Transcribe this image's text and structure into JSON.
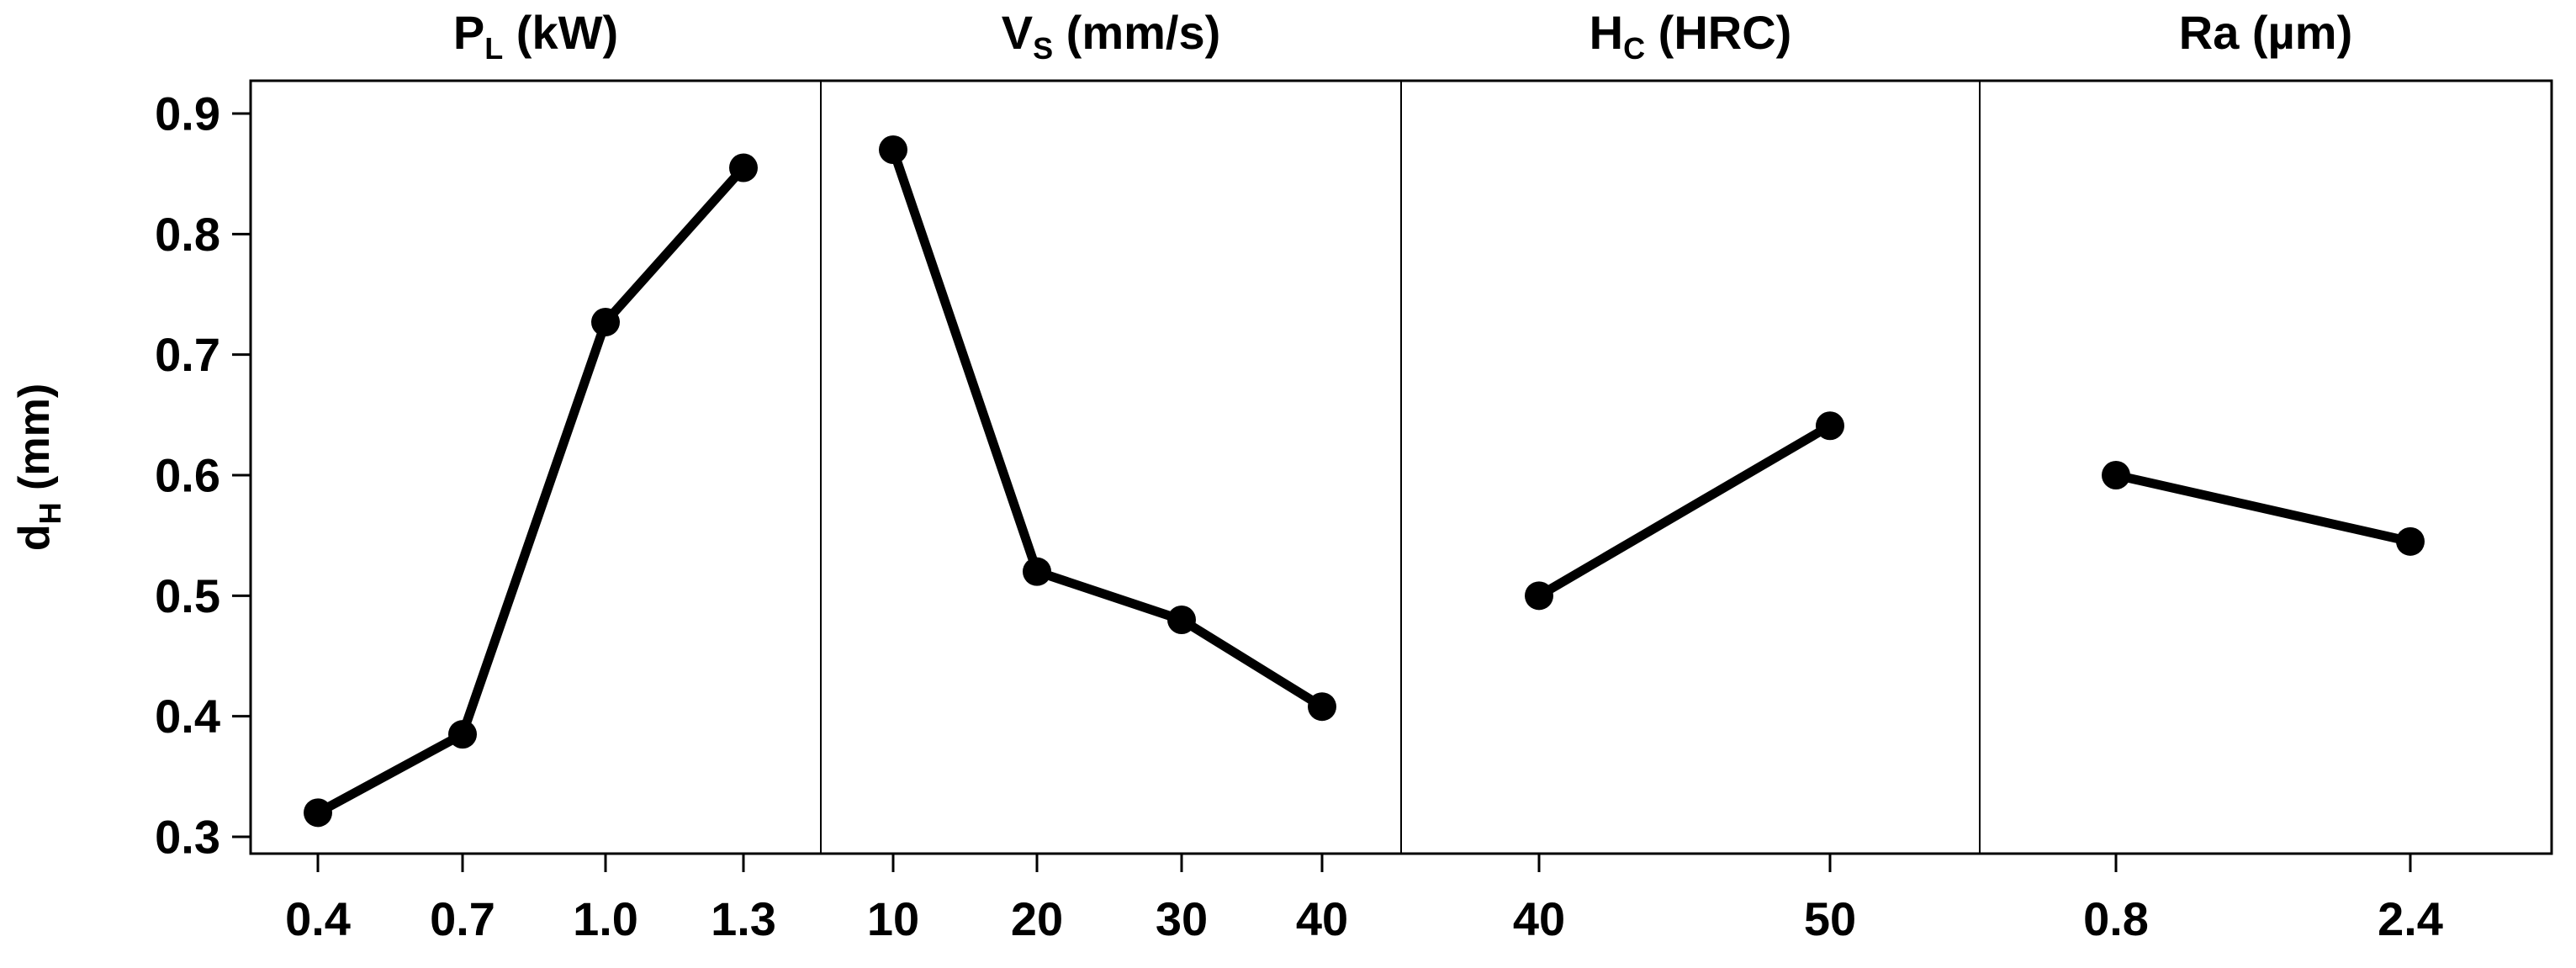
{
  "chart_data": {
    "type": "line",
    "ylabel": "d",
    "ylabel_sub": "H",
    "ylabel_unit": " (mm)",
    "ylim": [
      0.3,
      0.9
    ],
    "yticks": [
      "0.3",
      "0.4",
      "0.5",
      "0.6",
      "0.7",
      "0.8",
      "0.9"
    ],
    "panels": [
      {
        "title_main": "P",
        "title_sub": "L",
        "title_unit": " (kW)",
        "categories": [
          "0.4",
          "0.7",
          "1.0",
          "1.3"
        ],
        "values": [
          0.32,
          0.385,
          0.727,
          0.855
        ]
      },
      {
        "title_main": "V",
        "title_sub": "S",
        "title_unit": " (mm/s)",
        "categories": [
          "10",
          "20",
          "30",
          "40"
        ],
        "values": [
          0.87,
          0.52,
          0.48,
          0.408
        ]
      },
      {
        "title_main": "H",
        "title_sub": "C",
        "title_unit": " (HRC)",
        "categories": [
          "40",
          "50"
        ],
        "values": [
          0.5,
          0.641
        ]
      },
      {
        "title_main": "Ra (µm)",
        "title_sub": "",
        "title_unit": "",
        "categories": [
          "0.8",
          "2.4"
        ],
        "values": [
          0.6,
          0.545
        ]
      }
    ]
  }
}
